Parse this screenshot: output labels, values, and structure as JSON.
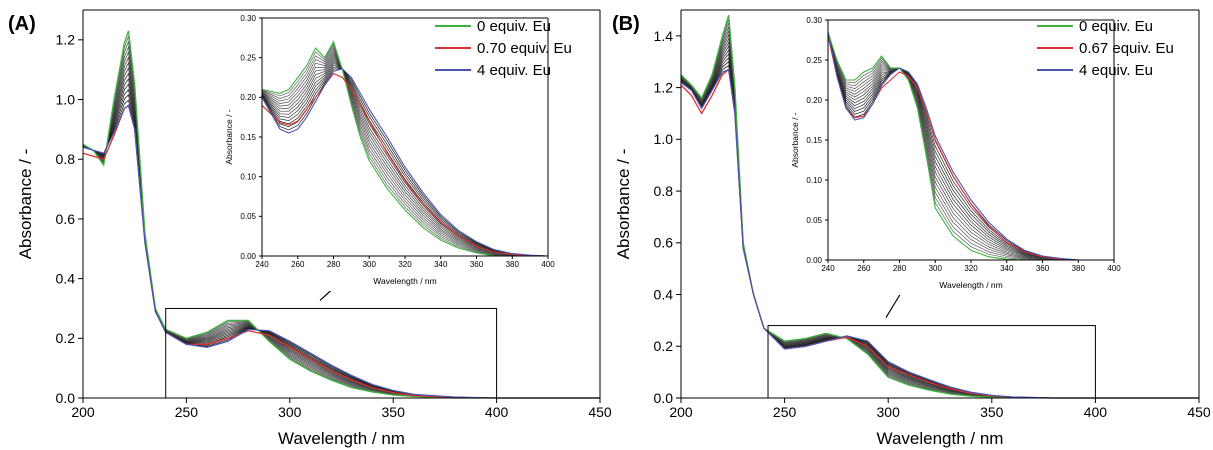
{
  "chart_data": [
    {
      "panel": "(A)",
      "type": "line",
      "xlabel": "Wavelength / nm",
      "ylabel": "Absorbance / -",
      "xlim": [
        200,
        450
      ],
      "ylim": [
        0,
        1.3
      ],
      "xticks": [
        200,
        250,
        300,
        350,
        400,
        450
      ],
      "yticks": [
        0.0,
        0.2,
        0.4,
        0.6,
        0.8,
        1.0,
        1.2
      ],
      "x": [
        200,
        205,
        210,
        215,
        220,
        222,
        225,
        230,
        235,
        240,
        250,
        260,
        270,
        280,
        290,
        300,
        310,
        320,
        330,
        340,
        350,
        360,
        380,
        400,
        450
      ],
      "series": [
        {
          "name": "0 equiv. Eu",
          "color": "#3cb43c",
          "values": [
            0.85,
            0.83,
            0.78,
            1.0,
            1.19,
            1.23,
            1.05,
            0.55,
            0.3,
            0.23,
            0.2,
            0.22,
            0.26,
            0.26,
            0.19,
            0.13,
            0.09,
            0.06,
            0.035,
            0.02,
            0.01,
            0.005,
            0.0,
            0.0,
            0.0
          ]
        },
        {
          "name": "0.70 equiv. Eu",
          "color": "#dd3030",
          "values": [
            0.82,
            0.81,
            0.8,
            0.88,
            0.97,
            0.98,
            0.9,
            0.52,
            0.29,
            0.22,
            0.18,
            0.18,
            0.2,
            0.225,
            0.21,
            0.17,
            0.13,
            0.09,
            0.06,
            0.035,
            0.018,
            0.008,
            0.002,
            0.0,
            0.0
          ]
        },
        {
          "name": "4 equiv. Eu",
          "color": "#4a55b0",
          "values": [
            0.84,
            0.83,
            0.82,
            0.89,
            0.97,
            0.98,
            0.9,
            0.52,
            0.29,
            0.22,
            0.18,
            0.17,
            0.19,
            0.23,
            0.225,
            0.19,
            0.15,
            0.11,
            0.075,
            0.045,
            0.025,
            0.012,
            0.003,
            0.0,
            0.0
          ]
        }
      ],
      "inset": {
        "xlabel": "Wavelength / nm",
        "ylabel": "Absorbance / -",
        "xlim": [
          240,
          400
        ],
        "ylim": [
          0,
          0.3
        ],
        "xticks": [
          240,
          260,
          280,
          300,
          320,
          340,
          360,
          380,
          400
        ],
        "yticks": [
          0.0,
          0.05,
          0.1,
          0.15,
          0.2,
          0.25,
          0.3
        ],
        "x": [
          240,
          250,
          255,
          260,
          265,
          270,
          275,
          280,
          285,
          290,
          295,
          300,
          310,
          320,
          330,
          340,
          350,
          360,
          370,
          380,
          390,
          400
        ],
        "series": [
          {
            "name": "0 equiv. Eu",
            "color": "#3cb43c",
            "values": [
              0.21,
              0.205,
              0.21,
              0.225,
              0.24,
              0.262,
              0.25,
              0.27,
              0.235,
              0.19,
              0.15,
              0.12,
              0.085,
              0.058,
              0.036,
              0.02,
              0.01,
              0.004,
              0.0,
              0.0,
              0.0,
              0.0
            ]
          },
          {
            "name": "0.70 equiv. Eu",
            "color": "#dd3030",
            "values": [
              0.19,
              0.168,
              0.165,
              0.17,
              0.185,
              0.2,
              0.215,
              0.23,
              0.225,
              0.21,
              0.19,
              0.17,
              0.13,
              0.095,
              0.065,
              0.042,
              0.025,
              0.012,
              0.005,
              0.002,
              0.0,
              0.0
            ]
          },
          {
            "name": "4 equiv. Eu",
            "color": "#4a55b0",
            "values": [
              0.2,
              0.16,
              0.155,
              0.16,
              0.175,
              0.195,
              0.215,
              0.233,
              0.236,
              0.225,
              0.205,
              0.185,
              0.15,
              0.112,
              0.08,
              0.052,
              0.032,
              0.018,
              0.008,
              0.003,
              0.001,
              0.0
            ]
          }
        ]
      }
    },
    {
      "panel": "(B)",
      "type": "line",
      "xlabel": "Wavelength / nm",
      "ylabel": "Absorbance / -",
      "xlim": [
        200,
        450
      ],
      "ylim": [
        0,
        1.5
      ],
      "xticks": [
        200,
        250,
        300,
        350,
        400,
        450
      ],
      "yticks": [
        0.0,
        0.2,
        0.4,
        0.6,
        0.8,
        1.0,
        1.2,
        1.4
      ],
      "x": [
        200,
        205,
        210,
        215,
        220,
        223,
        226,
        230,
        235,
        240,
        250,
        260,
        270,
        280,
        290,
        300,
        310,
        320,
        330,
        340,
        350,
        360,
        380,
        400,
        450
      ],
      "series": [
        {
          "name": "0 equiv. Eu",
          "color": "#3cb43c",
          "values": [
            1.25,
            1.21,
            1.16,
            1.25,
            1.4,
            1.48,
            1.2,
            0.6,
            0.4,
            0.27,
            0.22,
            0.23,
            0.25,
            0.23,
            0.17,
            0.08,
            0.05,
            0.03,
            0.015,
            0.007,
            0.003,
            0.001,
            0.0,
            0.0,
            0.0
          ]
        },
        {
          "name": "0.67 equiv. Eu",
          "color": "#dd3030",
          "values": [
            1.21,
            1.17,
            1.1,
            1.17,
            1.25,
            1.27,
            1.1,
            0.58,
            0.4,
            0.27,
            0.19,
            0.2,
            0.22,
            0.235,
            0.2,
            0.12,
            0.09,
            0.06,
            0.035,
            0.018,
            0.008,
            0.003,
            0.0,
            0.0,
            0.0
          ]
        },
        {
          "name": "4 equiv. Eu",
          "color": "#4a55b0",
          "values": [
            1.22,
            1.19,
            1.12,
            1.19,
            1.26,
            1.27,
            1.1,
            0.58,
            0.4,
            0.27,
            0.19,
            0.2,
            0.22,
            0.24,
            0.22,
            0.14,
            0.1,
            0.07,
            0.042,
            0.022,
            0.01,
            0.004,
            0.0,
            0.0,
            0.0
          ]
        }
      ],
      "inset": {
        "xlabel": "Wavelength / nm",
        "ylabel": "Absorbance / -",
        "xlim": [
          240,
          400
        ],
        "ylim": [
          0,
          0.3
        ],
        "xticks": [
          240,
          260,
          280,
          300,
          320,
          340,
          360,
          380,
          400
        ],
        "yticks": [
          0.0,
          0.05,
          0.1,
          0.15,
          0.2,
          0.25,
          0.3
        ],
        "x": [
          240,
          245,
          250,
          255,
          260,
          265,
          270,
          275,
          280,
          285,
          290,
          295,
          300,
          310,
          320,
          330,
          340,
          350,
          360,
          370,
          380,
          400
        ],
        "series": [
          {
            "name": "0 equiv. Eu",
            "color": "#3cb43c",
            "values": [
              0.285,
              0.25,
              0.225,
              0.225,
              0.235,
              0.24,
              0.255,
              0.24,
              0.24,
              0.225,
              0.19,
              0.13,
              0.065,
              0.03,
              0.012,
              0.004,
              0.001,
              0.0,
              0.0,
              0.0,
              0.0,
              0.0
            ]
          },
          {
            "name": "0.67 equiv. Eu",
            "color": "#dd3030",
            "values": [
              0.28,
              0.23,
              0.19,
              0.178,
              0.18,
              0.195,
              0.215,
              0.225,
              0.235,
              0.23,
              0.215,
              0.185,
              0.15,
              0.105,
              0.07,
              0.042,
              0.022,
              0.01,
              0.004,
              0.001,
              0.0,
              0.0
            ]
          },
          {
            "name": "4 equiv. Eu",
            "color": "#4a55b0",
            "values": [
              0.285,
              0.23,
              0.19,
              0.175,
              0.178,
              0.195,
              0.218,
              0.232,
              0.24,
              0.235,
              0.22,
              0.19,
              0.155,
              0.11,
              0.075,
              0.047,
              0.026,
              0.012,
              0.005,
              0.002,
              0.0,
              0.0
            ]
          }
        ]
      }
    }
  ]
}
